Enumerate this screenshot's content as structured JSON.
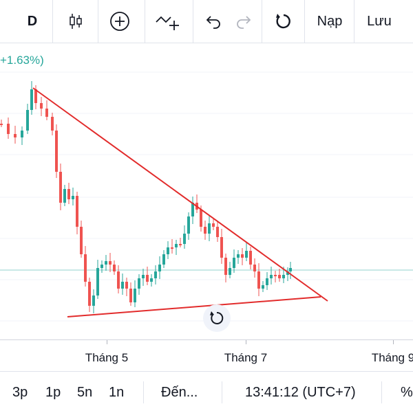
{
  "toolbar": {
    "interval_label": "D",
    "load_label": "Nạp",
    "save_label": "Lưu",
    "icons": [
      "candles-icon",
      "add-circle-icon",
      "add-indicator-icon",
      "undo-icon",
      "redo-icon",
      "reload-icon"
    ]
  },
  "legend": {
    "change_text": "+1.63%)"
  },
  "colors": {
    "up": "#26a69a",
    "down": "#ef5350",
    "trendline": "#e22b2b"
  },
  "xaxis": {
    "labels": [
      "Tháng 5",
      "Tháng 7",
      "Tháng 9"
    ]
  },
  "bottom": {
    "ranges": [
      "3p",
      "1p",
      "5n",
      "1n"
    ],
    "goto_label": "Đến...",
    "clock": "13:41:12 (UTC+7)",
    "percent_label": "%"
  }
}
